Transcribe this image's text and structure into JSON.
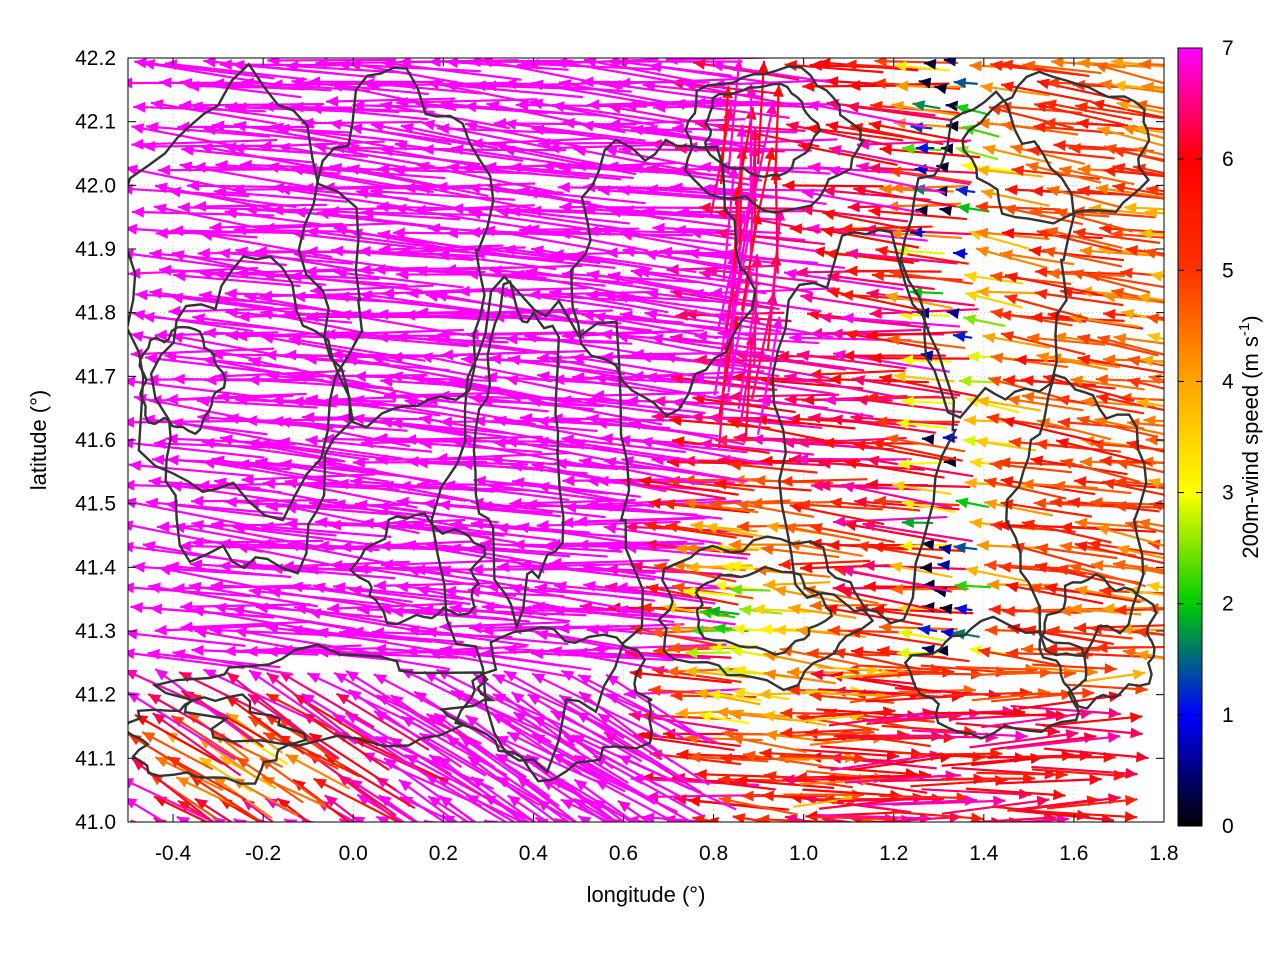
{
  "chart_data": {
    "type": "quiver",
    "xlabel": "longitude (°)",
    "ylabel": "latitude (°)",
    "xlim": [
      -0.5,
      1.8
    ],
    "ylim": [
      41.0,
      42.2
    ],
    "xticks": [
      {
        "value": -0.4,
        "label": "-0.4"
      },
      {
        "value": -0.2,
        "label": "-0.2"
      },
      {
        "value": 0.0,
        "label": "0.0"
      },
      {
        "value": 0.2,
        "label": "0.2"
      },
      {
        "value": 0.4,
        "label": "0.4"
      },
      {
        "value": 0.6,
        "label": "0.6"
      },
      {
        "value": 0.8,
        "label": "0.8"
      },
      {
        "value": 1.0,
        "label": "1.0"
      },
      {
        "value": 1.2,
        "label": "1.2"
      },
      {
        "value": 1.4,
        "label": "1.4"
      },
      {
        "value": 1.6,
        "label": "1.6"
      },
      {
        "value": 1.8,
        "label": "1.8"
      }
    ],
    "yticks": [
      {
        "value": 41.0,
        "label": "41.0"
      },
      {
        "value": 41.1,
        "label": "41.1"
      },
      {
        "value": 41.2,
        "label": "41.2"
      },
      {
        "value": 41.3,
        "label": "41.3"
      },
      {
        "value": 41.4,
        "label": "41.4"
      },
      {
        "value": 41.5,
        "label": "41.5"
      },
      {
        "value": 41.6,
        "label": "41.6"
      },
      {
        "value": 41.7,
        "label": "41.7"
      },
      {
        "value": 41.8,
        "label": "41.8"
      },
      {
        "value": 41.9,
        "label": "41.9"
      },
      {
        "value": 42.0,
        "label": "42.0"
      },
      {
        "value": 42.1,
        "label": "42.1"
      },
      {
        "value": 42.2,
        "label": "42.2"
      }
    ],
    "grid": true,
    "colorbar": {
      "label_main": "200m-wind speed (m s",
      "label_sup": "-1",
      "label_end": ")",
      "range": [
        0,
        7
      ],
      "ticks": [
        {
          "value": 0,
          "label": "0"
        },
        {
          "value": 1,
          "label": "1"
        },
        {
          "value": 2,
          "label": "2"
        },
        {
          "value": 3,
          "label": "3"
        },
        {
          "value": 4,
          "label": "4"
        },
        {
          "value": 5,
          "label": "5"
        },
        {
          "value": 6,
          "label": "6"
        },
        {
          "value": 7,
          "label": "7"
        }
      ],
      "colors": [
        "#000000",
        "#0000ff",
        "#00cc00",
        "#ffff00",
        "#ffa500",
        "#ff3300",
        "#ff0000",
        "#ff00ff"
      ]
    },
    "contour_color": "#333333"
  }
}
